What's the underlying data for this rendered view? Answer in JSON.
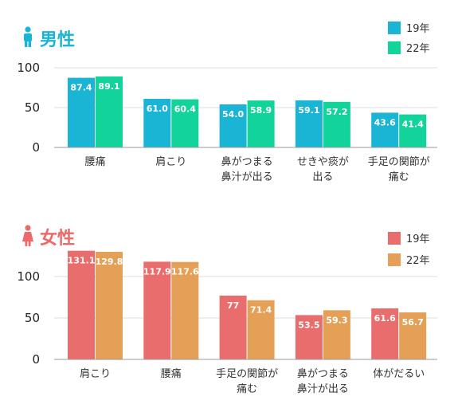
{
  "colors": {
    "male_title": "#1ab4d4",
    "female_title": "#ec6a6a",
    "grid": "#dddddd",
    "axis": "#999999"
  },
  "chart_data": [
    {
      "type": "bar",
      "title": "男性",
      "icon": "male-person-icon",
      "categories": [
        [
          "腰痛"
        ],
        [
          "肩こり"
        ],
        [
          "鼻がつまる",
          "鼻汁が出る"
        ],
        [
          "せきや痰が",
          "出る"
        ],
        [
          "手足の関節が",
          "痛む"
        ]
      ],
      "series": [
        {
          "name": "19年",
          "color": "#1ab4d4",
          "values": [
            87.4,
            61.0,
            54.0,
            59.1,
            43.6
          ],
          "labels": [
            "87.4",
            "61.0",
            "54.0",
            "59.1",
            "43.6"
          ]
        },
        {
          "name": "22年",
          "color": "#12d39a",
          "values": [
            89.1,
            60.4,
            58.9,
            57.2,
            41.4
          ],
          "labels": [
            "89.1",
            "60.4",
            "58.9",
            "57.2",
            "41.4"
          ]
        }
      ],
      "yticks": [
        "0",
        "50",
        "100"
      ],
      "ylim": [
        0,
        100
      ],
      "grid": true,
      "legend": "top-right"
    },
    {
      "type": "bar",
      "title": "女性",
      "icon": "female-person-icon",
      "categories": [
        [
          "肩こり"
        ],
        [
          "腰痛"
        ],
        [
          "手足の関節が",
          "痛む"
        ],
        [
          "鼻がつまる",
          "鼻汁が出る"
        ],
        [
          "体がだるい"
        ]
      ],
      "series": [
        {
          "name": "19年",
          "color": "#e96d6d",
          "values": [
            131.1,
            117.9,
            77,
            53.5,
            61.6
          ],
          "labels": [
            "131.1",
            "117.9",
            "77",
            "53.5",
            "61.6"
          ]
        },
        {
          "name": "22年",
          "color": "#e5a057",
          "values": [
            129.8,
            117.6,
            71.4,
            59.3,
            56.7
          ],
          "labels": [
            "129.8",
            "117.6",
            "71.4",
            "59.3",
            "56.7"
          ]
        }
      ],
      "yticks": [
        "0",
        "50",
        "100"
      ],
      "ylim": [
        0,
        140
      ],
      "grid": true,
      "legend": "top-right"
    }
  ]
}
